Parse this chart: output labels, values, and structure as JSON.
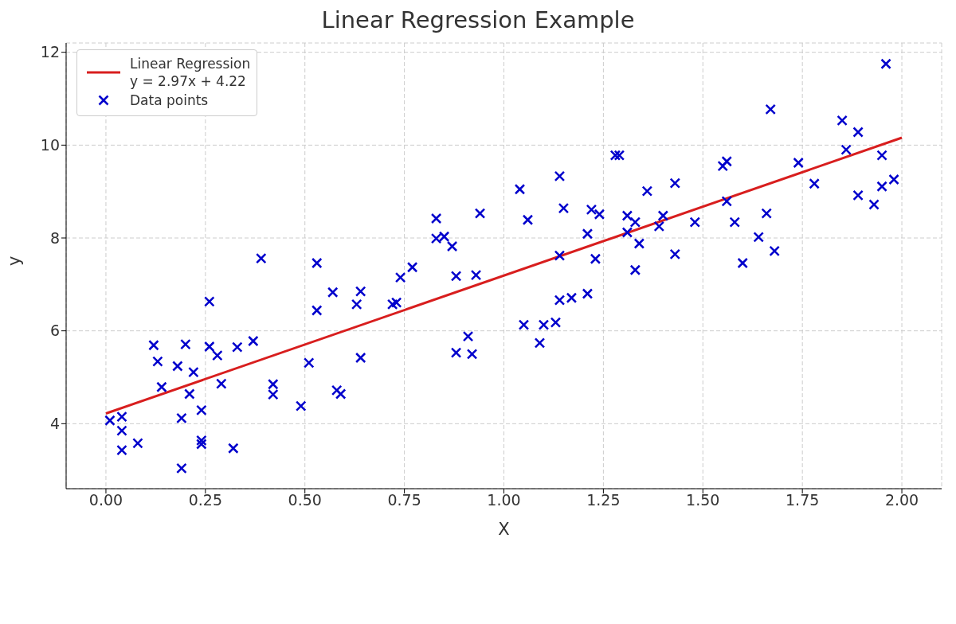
{
  "chart_data": {
    "type": "scatter",
    "title": "Linear Regression Example",
    "xlabel": "X",
    "ylabel": "y",
    "xlim": [
      -0.1,
      2.1
    ],
    "ylim": [
      2.6,
      12.2
    ],
    "xticks": [
      {
        "value": 0,
        "label": "0.00"
      },
      {
        "value": 0.25,
        "label": "0.25"
      },
      {
        "value": 0.5,
        "label": "0.50"
      },
      {
        "value": 0.75,
        "label": "0.75"
      },
      {
        "value": 1,
        "label": "1.00"
      },
      {
        "value": 1.25,
        "label": "1.25"
      },
      {
        "value": 1.5,
        "label": "1.50"
      },
      {
        "value": 1.75,
        "label": "1.75"
      },
      {
        "value": 2,
        "label": "2.00"
      }
    ],
    "yticks": [
      4,
      6,
      8,
      10,
      12
    ],
    "grid": true,
    "legend": "top left",
    "series": [
      {
        "type": "line",
        "name": "Linear Regression\ny = 2.97x + 4.22",
        "color": "#d81e1e",
        "x": [
          0,
          2
        ],
        "values": [
          4.22,
          10.16
        ]
      },
      {
        "name": "Data points",
        "color": "#0000cc",
        "marker": "cross",
        "x": [
          0.01,
          0.04,
          0.04,
          0.04,
          0.08,
          0.12,
          0.13,
          0.14,
          0.18,
          0.2,
          0.19,
          0.19,
          0.21,
          0.22,
          0.24,
          0.24,
          0.24,
          0.26,
          0.26,
          0.28,
          0.29,
          0.32,
          0.33,
          0.37,
          0.39,
          0.42,
          0.42,
          0.49,
          0.51,
          0.53,
          0.53,
          0.57,
          0.58,
          0.59,
          0.63,
          0.64,
          0.64,
          0.72,
          0.73,
          0.74,
          0.77,
          0.83,
          0.83,
          0.85,
          0.87,
          0.88,
          0.88,
          0.91,
          0.92,
          0.93,
          0.94,
          1.04,
          1.06,
          1.14,
          1.15,
          1.22,
          1.24,
          1.21,
          1.14,
          1.23,
          1.28,
          1.29,
          1.31,
          1.33,
          1.31,
          1.39,
          1.4,
          1.36,
          1.43,
          1.34,
          1.43,
          1.33,
          1.48,
          1.55,
          1.56,
          1.56,
          1.58,
          1.66,
          1.64,
          1.68,
          1.6,
          1.67,
          1.74,
          1.78,
          1.85,
          1.86,
          1.89,
          1.89,
          1.93,
          1.96,
          1.95,
          1.95,
          1.98,
          1.05,
          1.09,
          1.1,
          1.13,
          1.14,
          1.17,
          1.21
        ],
        "values": [
          4.07,
          4.15,
          3.85,
          3.43,
          3.58,
          5.69,
          5.34,
          4.79,
          5.24,
          5.71,
          4.12,
          3.04,
          4.64,
          5.11,
          4.29,
          3.64,
          3.56,
          6.63,
          5.66,
          5.47,
          4.86,
          3.47,
          5.65,
          5.78,
          7.56,
          4.85,
          4.63,
          4.38,
          5.31,
          7.46,
          6.44,
          6.83,
          4.72,
          4.64,
          6.57,
          6.85,
          5.42,
          6.57,
          6.61,
          7.15,
          7.37,
          8.42,
          7.99,
          8.03,
          7.82,
          7.18,
          5.53,
          5.88,
          5.5,
          7.2,
          8.53,
          9.05,
          8.39,
          9.33,
          8.64,
          8.61,
          8.51,
          8.09,
          7.62,
          7.55,
          9.78,
          9.78,
          8.48,
          8.34,
          8.12,
          8.25,
          8.48,
          9.01,
          9.18,
          7.88,
          7.65,
          7.31,
          8.34,
          9.55,
          9.65,
          8.79,
          8.34,
          8.53,
          8.02,
          7.72,
          7.46,
          10.77,
          9.62,
          9.17,
          10.53,
          9.9,
          10.28,
          8.92,
          8.72,
          11.75,
          9.78,
          9.11,
          9.26,
          6.13,
          5.74,
          6.13,
          6.18,
          6.66,
          6.71,
          6.8
        ]
      }
    ]
  }
}
